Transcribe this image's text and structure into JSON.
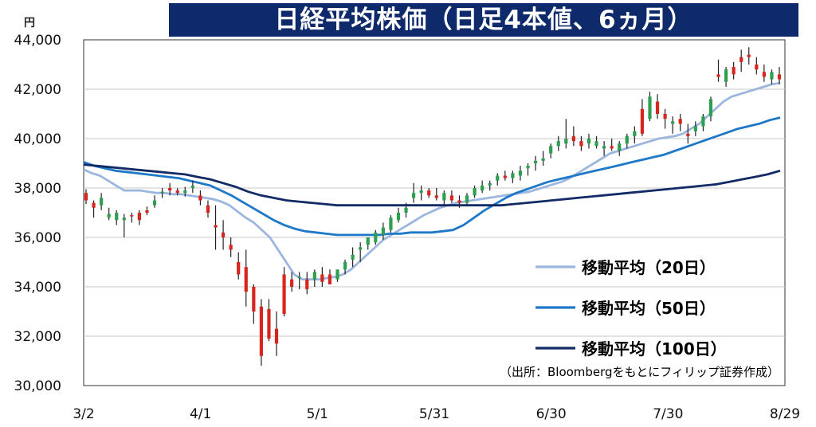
{
  "chart_data": {
    "type": "line",
    "title": "日経平均株価（日足4本値、6ヵ月）",
    "unit": "円",
    "ylim": [
      30000,
      44000
    ],
    "y_ticks": [
      "44,000",
      "42,000",
      "40,000",
      "38,000",
      "36,000",
      "34,000",
      "32,000",
      "30,000"
    ],
    "y_tick_values": [
      44000,
      42000,
      40000,
      38000,
      36000,
      34000,
      32000,
      30000
    ],
    "x_tick_labels": [
      "3/2",
      "4/1",
      "5/1",
      "5/31",
      "6/30",
      "7/30",
      "8/29"
    ],
    "x_tick_index": [
      0,
      26,
      52,
      78,
      104,
      130,
      156
    ],
    "source": "（出所：Bloombergをもとにフィリップ証券作成）",
    "colors": {
      "up": "#2e9e4f",
      "down": "#d7261e",
      "wick": "#222222",
      "title_bg": "#0f2a6b"
    },
    "series": [
      {
        "name": "移動平均（20日）",
        "color": "#9bb6df",
        "values": [
          38750,
          38600,
          38500,
          38300,
          38100,
          37900,
          37900,
          37900,
          37850,
          37800,
          37800,
          37750,
          37750,
          37700,
          37650,
          37600,
          37550,
          37450,
          37300,
          37050,
          36800,
          36600,
          36300,
          36000,
          35500,
          35000,
          34500,
          34300,
          34300,
          34300,
          34350,
          34400,
          34500,
          34700,
          35000,
          35300,
          35600,
          35900,
          36100,
          36300,
          36500,
          36700,
          36900,
          37050,
          37200,
          37300,
          37400,
          37450,
          37500,
          37550,
          37600,
          37650,
          37700,
          37750,
          37800,
          37850,
          37950,
          38050,
          38150,
          38250,
          38400,
          38600,
          38800,
          39000,
          39200,
          39400,
          39500,
          39600,
          39700,
          39800,
          39900,
          40000,
          40050,
          40100,
          40200,
          40400,
          40600,
          40900,
          41200,
          41500,
          41700,
          41800,
          41900,
          42000,
          42100,
          42200,
          42250
        ]
      },
      {
        "name": "移動平均（50日）",
        "color": "#1e78c8",
        "values": [
          39050,
          38900,
          38800,
          38700,
          38650,
          38600,
          38550,
          38500,
          38450,
          38400,
          38300,
          38200,
          38100,
          37900,
          37700,
          37450,
          37200,
          36950,
          36700,
          36500,
          36350,
          36250,
          36200,
          36150,
          36100,
          36100,
          36100,
          36100,
          36100,
          36150,
          36150,
          36200,
          36200,
          36200,
          36250,
          36300,
          36500,
          36800,
          37100,
          37350,
          37600,
          37800,
          37950,
          38100,
          38250,
          38350,
          38450,
          38550,
          38650,
          38750,
          38850,
          38950,
          39050,
          39150,
          39250,
          39350,
          39500,
          39650,
          39800,
          39950,
          40100,
          40250,
          40400,
          40500,
          40600,
          40750,
          40850
        ]
      },
      {
        "name": "移動平均（100日）",
        "color": "#122a66",
        "values": [
          38950,
          38900,
          38850,
          38800,
          38750,
          38700,
          38650,
          38600,
          38550,
          38450,
          38350,
          38200,
          38050,
          37850,
          37700,
          37600,
          37500,
          37450,
          37400,
          37350,
          37300,
          37300,
          37300,
          37300,
          37300,
          37300,
          37300,
          37300,
          37300,
          37300,
          37300,
          37300,
          37300,
          37300,
          37350,
          37400,
          37450,
          37500,
          37550,
          37600,
          37650,
          37700,
          37750,
          37800,
          37850,
          37900,
          37950,
          38000,
          38050,
          38100,
          38150,
          38250,
          38350,
          38450,
          38550,
          38700
        ]
      }
    ],
    "candles": [
      [
        37800,
        37950,
        37350,
        37500
      ],
      [
        37400,
        37500,
        36800,
        37200
      ],
      [
        37300,
        37800,
        37100,
        37600
      ],
      [
        36800,
        37200,
        36700,
        36950
      ],
      [
        36700,
        37100,
        36500,
        37000
      ],
      [
        36700,
        36950,
        36000,
        36800
      ],
      [
        36900,
        37000,
        36600,
        36850
      ],
      [
        37000,
        37100,
        36500,
        36700
      ],
      [
        37100,
        37250,
        36900,
        37000
      ],
      [
        37300,
        37700,
        37200,
        37500
      ],
      [
        37800,
        38000,
        37600,
        37850
      ],
      [
        38000,
        38200,
        37700,
        37900
      ],
      [
        37900,
        38000,
        37700,
        37800
      ],
      [
        37800,
        38050,
        37650,
        37900
      ],
      [
        38000,
        38300,
        37800,
        38100
      ],
      [
        37700,
        37900,
        37300,
        37500
      ],
      [
        37300,
        37500,
        36800,
        37000
      ],
      [
        36500,
        37300,
        35500,
        36400
      ],
      [
        36200,
        36700,
        35500,
        36000
      ],
      [
        35700,
        36000,
        35200,
        35500
      ],
      [
        35000,
        35400,
        34300,
        34500
      ],
      [
        34800,
        35500,
        33200,
        33800
      ],
      [
        34000,
        34100,
        32500,
        33000
      ],
      [
        33200,
        33500,
        30800,
        31200
      ],
      [
        33100,
        33500,
        31800,
        31900
      ],
      [
        32300,
        33000,
        31200,
        31700
      ],
      [
        34500,
        34800,
        32800,
        32900
      ],
      [
        34300,
        34600,
        33800,
        34000
      ],
      [
        34400,
        34600,
        33900,
        34400
      ],
      [
        34300,
        34600,
        33700,
        33900
      ],
      [
        34300,
        34700,
        34000,
        34600
      ],
      [
        34500,
        34800,
        34000,
        34200
      ],
      [
        34500,
        34700,
        34100,
        34100
      ],
      [
        34300,
        34700,
        34200,
        34700
      ],
      [
        34700,
        35100,
        34500,
        35000
      ],
      [
        35100,
        35600,
        34800,
        35300
      ],
      [
        35500,
        35800,
        35000,
        35600
      ],
      [
        35700,
        36000,
        35500,
        36000
      ],
      [
        35800,
        36300,
        35700,
        36200
      ],
      [
        36100,
        36600,
        35900,
        36400
      ],
      [
        36300,
        36900,
        36200,
        36800
      ],
      [
        36700,
        37200,
        36600,
        37000
      ],
      [
        37000,
        37400,
        36800,
        37200
      ],
      [
        37600,
        38200,
        37400,
        37800
      ],
      [
        37800,
        38100,
        37500,
        37900
      ],
      [
        37900,
        38000,
        37600,
        37700
      ],
      [
        37700,
        38000,
        37500,
        37600
      ],
      [
        37500,
        37900,
        37300,
        37800
      ],
      [
        37700,
        37900,
        37400,
        37500
      ],
      [
        37500,
        37700,
        37200,
        37400
      ],
      [
        37400,
        37800,
        37300,
        37700
      ],
      [
        37700,
        38100,
        37600,
        38000
      ],
      [
        37900,
        38300,
        37800,
        38100
      ],
      [
        38100,
        38300,
        37900,
        38200
      ],
      [
        38300,
        38600,
        38100,
        38500
      ],
      [
        38500,
        38700,
        38300,
        38400
      ],
      [
        38400,
        38700,
        38200,
        38600
      ],
      [
        38500,
        38900,
        38300,
        38700
      ],
      [
        38800,
        39000,
        38500,
        38900
      ],
      [
        39000,
        39300,
        38700,
        39100
      ],
      [
        39100,
        39500,
        38900,
        39200
      ],
      [
        39400,
        39800,
        39200,
        39700
      ],
      [
        39700,
        40100,
        39500,
        39900
      ],
      [
        39800,
        40800,
        39600,
        40000
      ],
      [
        40100,
        40500,
        39700,
        39900
      ],
      [
        39900,
        40100,
        39500,
        39700
      ],
      [
        39800,
        40200,
        39600,
        40000
      ],
      [
        39700,
        40100,
        39600,
        39900
      ],
      [
        39600,
        39900,
        39300,
        39700
      ],
      [
        39700,
        40000,
        39500,
        39600
      ],
      [
        39500,
        39900,
        39300,
        39800
      ],
      [
        39800,
        40200,
        39600,
        40100
      ],
      [
        40100,
        40500,
        39800,
        40300
      ],
      [
        41200,
        41600,
        40100,
        40200
      ],
      [
        40800,
        41900,
        40700,
        41700
      ],
      [
        41500,
        41800,
        40800,
        41000
      ],
      [
        41000,
        41200,
        40400,
        40800
      ],
      [
        40600,
        40900,
        40200,
        40700
      ],
      [
        40800,
        41000,
        40300,
        40600
      ],
      [
        40200,
        40600,
        39800,
        40100
      ],
      [
        40300,
        40700,
        40100,
        40500
      ],
      [
        40500,
        41000,
        40300,
        40900
      ],
      [
        40900,
        41700,
        40700,
        41600
      ],
      [
        42600,
        43200,
        42300,
        42500
      ],
      [
        42300,
        42900,
        42100,
        42800
      ],
      [
        42900,
        43100,
        42400,
        42600
      ],
      [
        43300,
        43600,
        42700,
        43100
      ],
      [
        43400,
        43700,
        43000,
        43300
      ],
      [
        43000,
        43300,
        42600,
        42800
      ],
      [
        42700,
        43000,
        42300,
        42500
      ],
      [
        42400,
        42800,
        42200,
        42700
      ],
      [
        42600,
        42900,
        42200,
        42400
      ]
    ]
  }
}
